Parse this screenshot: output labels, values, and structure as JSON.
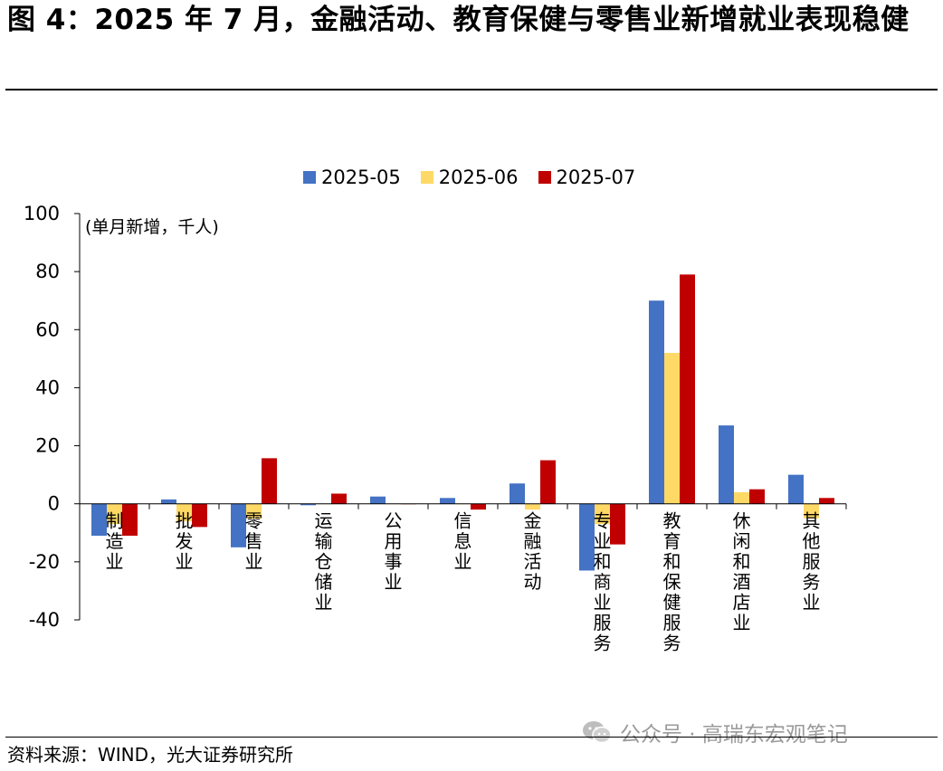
{
  "title": "图 4：2025 年 7 月，金融活动、教育保健与零售业新增就业表现稳健",
  "source": "资料来源：WIND，光大证券研究所",
  "watermark": "公众号 · 高瑞东宏观笔记",
  "chart_data": {
    "type": "bar",
    "unit_label": "(单月新增，千人)",
    "categories": [
      "制造业",
      "批发业",
      "零售业",
      "运输仓储业",
      "公用事业",
      "信息业",
      "金融活动",
      "专业和商业服务",
      "教育和保健服务",
      "休闲和酒店业",
      "其他服务业"
    ],
    "series": [
      {
        "name": "2025-05",
        "color": "#4472C4",
        "values": [
          -11,
          1.5,
          -15,
          -0.5,
          2.5,
          2,
          7,
          -23,
          70,
          27,
          10
        ]
      },
      {
        "name": "2025-06",
        "color": "#FFD966",
        "values": [
          -7,
          -6,
          -5,
          0,
          0,
          0,
          -2,
          -7,
          52,
          4,
          -5
        ]
      },
      {
        "name": "2025-07",
        "color": "#C00000",
        "values": [
          -11,
          -8,
          15.7,
          3.5,
          0,
          -2,
          15,
          -14,
          79,
          5,
          2
        ]
      }
    ],
    "ylim": [
      -40,
      100
    ],
    "yticks": [
      -40,
      -20,
      0,
      20,
      40,
      60,
      80,
      100
    ],
    "legend_position": "top",
    "grid": false
  }
}
